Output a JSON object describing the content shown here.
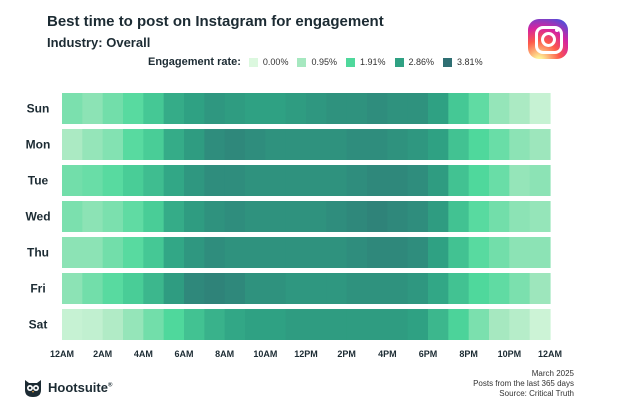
{
  "chart_data": {
    "type": "heatmap",
    "title": "Best time to post on Instagram for engagement",
    "subtitle": "Industry: Overall",
    "legend": {
      "label": "Engagement rate:",
      "levels": [
        {
          "label": "0.00%",
          "color": "#dcf8df"
        },
        {
          "label": "0.95%",
          "color": "#a6e8c0"
        },
        {
          "label": "1.91%",
          "color": "#4fd89c"
        },
        {
          "label": "2.86%",
          "color": "#2fa183"
        },
        {
          "label": "3.81%",
          "color": "#2f6f73"
        }
      ]
    },
    "days": [
      "Sun",
      "Mon",
      "Tue",
      "Wed",
      "Thu",
      "Fri",
      "Sat"
    ],
    "x_tick_labels": [
      "12AM",
      "2AM",
      "4AM",
      "6AM",
      "8AM",
      "10AM",
      "12PM",
      "2PM",
      "4PM",
      "6PM",
      "8PM",
      "10PM",
      "12AM"
    ],
    "intensity_scale": [
      0,
      4
    ],
    "values": [
      [
        1.5,
        1.3,
        1.6,
        1.9,
        2.3,
        2.8,
        3.0,
        3.2,
        3.1,
        3.0,
        3.0,
        3.1,
        3.2,
        3.3,
        3.3,
        3.4,
        3.3,
        3.3,
        3.0,
        2.3,
        1.8,
        1.2,
        0.9,
        0.4
      ],
      [
        0.9,
        1.2,
        1.4,
        1.9,
        2.2,
        2.8,
        3.1,
        3.4,
        3.5,
        3.4,
        3.3,
        3.3,
        3.3,
        3.3,
        3.4,
        3.4,
        3.3,
        3.2,
        3.0,
        2.4,
        2.0,
        1.7,
        1.3,
        1.1
      ],
      [
        1.6,
        1.7,
        1.9,
        2.2,
        2.5,
        2.9,
        3.2,
        3.4,
        3.4,
        3.3,
        3.3,
        3.3,
        3.3,
        3.3,
        3.4,
        3.5,
        3.5,
        3.4,
        3.1,
        2.4,
        2.0,
        1.7,
        1.2,
        1.3
      ],
      [
        1.5,
        1.3,
        1.5,
        1.8,
        2.2,
        2.8,
        3.1,
        3.3,
        3.4,
        3.3,
        3.3,
        3.3,
        3.3,
        3.4,
        3.5,
        3.6,
        3.5,
        3.4,
        3.1,
        2.4,
        1.9,
        1.6,
        1.3,
        1.2
      ],
      [
        1.3,
        1.3,
        1.6,
        1.9,
        2.3,
        2.9,
        3.2,
        3.4,
        3.3,
        3.3,
        3.3,
        3.3,
        3.3,
        3.3,
        3.4,
        3.5,
        3.5,
        3.4,
        3.0,
        2.4,
        1.9,
        1.6,
        1.3,
        1.3
      ],
      [
        1.3,
        1.6,
        1.9,
        2.2,
        2.6,
        3.1,
        3.5,
        3.6,
        3.5,
        3.3,
        3.3,
        3.2,
        3.2,
        3.2,
        3.3,
        3.3,
        3.3,
        3.2,
        2.9,
        2.4,
        2.0,
        1.8,
        1.5,
        1.1
      ],
      [
        0.4,
        0.5,
        0.8,
        1.2,
        1.6,
        2.0,
        2.4,
        2.7,
        2.9,
        3.0,
        3.0,
        3.1,
        3.1,
        3.1,
        3.1,
        3.1,
        3.1,
        3.0,
        2.6,
        2.1,
        1.5,
        1.0,
        0.7,
        0.3
      ]
    ]
  },
  "brand": {
    "name": "Hootsuite",
    "mark": "®"
  },
  "footer": {
    "date": "March 2025",
    "note": "Posts from the last 365 days",
    "source": "Source: Critical Truth"
  }
}
